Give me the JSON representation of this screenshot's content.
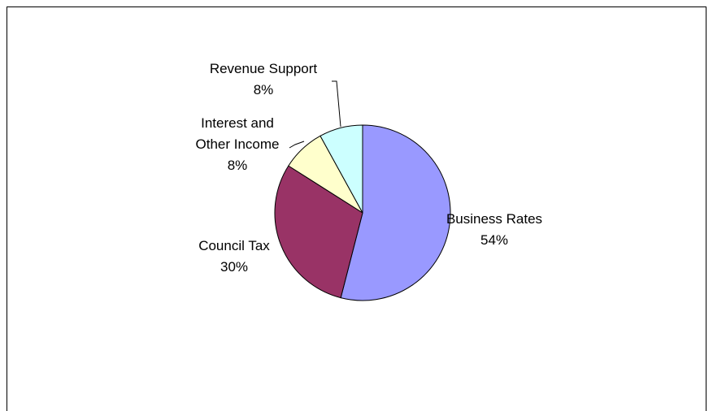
{
  "chart_data": {
    "type": "pie",
    "title": "",
    "slices": [
      {
        "label": "Business Rates",
        "value": 54,
        "value_label": "54%",
        "color": "#9999FF"
      },
      {
        "label": "Council Tax",
        "value": 30,
        "value_label": "30%",
        "color": "#993366"
      },
      {
        "label_lines": [
          "Interest and",
          "Other Income"
        ],
        "value": 8,
        "value_label": "8%",
        "color": "#FFFFCC"
      },
      {
        "label": "Revenue Support",
        "value": 8,
        "value_label": "8%",
        "color": "#CCFFFF"
      }
    ],
    "legend": "none",
    "slice_border_color": "#000000"
  }
}
